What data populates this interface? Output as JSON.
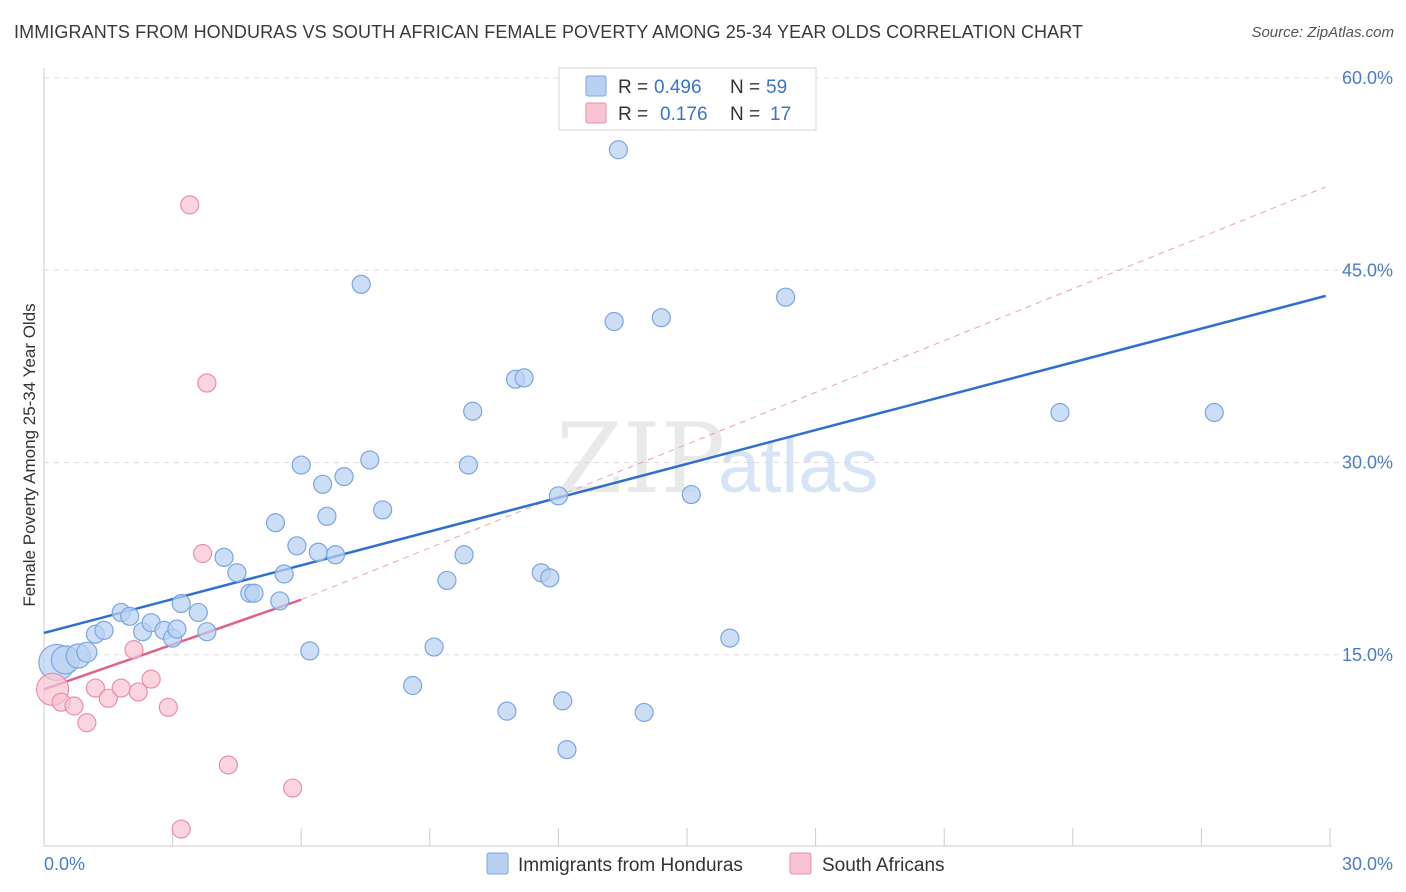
{
  "title": "IMMIGRANTS FROM HONDURAS VS SOUTH AFRICAN FEMALE POVERTY AMONG 25-34 YEAR OLDS CORRELATION CHART",
  "source": "Source: ZipAtlas.com",
  "watermark": {
    "zip": "ZIP",
    "atlas": "atlas"
  },
  "colors": {
    "blue_fill": "#b8d1f3",
    "blue_stroke": "#7aa6e0",
    "blue_line": "#2f6fcf",
    "pink_fill": "#f8c3d3",
    "pink_stroke": "#ea8fab",
    "pink_line": "#e0628c",
    "tick": "#4a7cc7",
    "grid": "#dddddd"
  },
  "chart_data": {
    "type": "scatter",
    "xlabel": "",
    "ylabel": "Female Poverty Among 25-34 Year Olds",
    "xlim": [
      0,
      30
    ],
    "ylim": [
      0,
      60
    ],
    "x_tick_labels": [
      {
        "v": 0,
        "label": "0.0%"
      },
      {
        "v": 30,
        "label": "30.0%"
      }
    ],
    "y_tick_labels": [
      {
        "v": 15,
        "label": "15.0%"
      },
      {
        "v": 30,
        "label": "30.0%"
      },
      {
        "v": 45,
        "label": "45.0%"
      },
      {
        "v": 60,
        "label": "60.0%"
      }
    ],
    "grid_y": [
      15,
      30,
      45,
      60
    ],
    "x_minor_ticks": [
      3,
      6,
      9,
      12,
      15,
      18,
      21,
      24,
      27,
      30
    ],
    "legend": {
      "rows": [
        {
          "r_label": "R =",
          "r": "0.496",
          "n_label": "N =",
          "n": "59",
          "color": "blue"
        },
        {
          "r_label": "R =",
          "r": "0.176",
          "n_label": "N =",
          "n": "17",
          "color": "pink"
        }
      ]
    },
    "series": [
      {
        "name": "Immigrants from Honduras",
        "color": "blue",
        "trend": {
          "x0": 0,
          "y0": 16.7,
          "x1": 29.9,
          "y1": 43.0
        },
        "points": [
          [
            0.3,
            14.4,
            18
          ],
          [
            0.5,
            14.6,
            14
          ],
          [
            0.8,
            14.9,
            12
          ],
          [
            1.0,
            15.2,
            10
          ],
          [
            1.2,
            16.6,
            9
          ],
          [
            1.4,
            16.9,
            9
          ],
          [
            1.8,
            18.3,
            9
          ],
          [
            2.0,
            18.0,
            9
          ],
          [
            2.3,
            16.8,
            9
          ],
          [
            2.5,
            17.5,
            9
          ],
          [
            2.8,
            16.9,
            9
          ],
          [
            3.0,
            16.3,
            9
          ],
          [
            3.1,
            17.0,
            9
          ],
          [
            3.2,
            19.0,
            9
          ],
          [
            3.6,
            18.3,
            9
          ],
          [
            3.8,
            16.8,
            9
          ],
          [
            4.2,
            22.6,
            9
          ],
          [
            4.5,
            21.4,
            9
          ],
          [
            4.8,
            19.8,
            9
          ],
          [
            4.9,
            19.8,
            9
          ],
          [
            5.4,
            25.3,
            9
          ],
          [
            5.5,
            19.2,
            9
          ],
          [
            5.6,
            21.3,
            9
          ],
          [
            5.9,
            23.5,
            9
          ],
          [
            6.0,
            29.8,
            9
          ],
          [
            6.2,
            15.3,
            9
          ],
          [
            6.4,
            23.0,
            9
          ],
          [
            6.5,
            28.3,
            9
          ],
          [
            6.6,
            25.8,
            9
          ],
          [
            6.8,
            22.8,
            9
          ],
          [
            7.0,
            28.9,
            9
          ],
          [
            7.4,
            43.9,
            9
          ],
          [
            7.6,
            30.2,
            9
          ],
          [
            7.9,
            26.3,
            9
          ],
          [
            8.6,
            12.6,
            9
          ],
          [
            9.1,
            15.6,
            9
          ],
          [
            9.4,
            20.8,
            9
          ],
          [
            9.8,
            22.8,
            9
          ],
          [
            9.9,
            29.8,
            9
          ],
          [
            10.0,
            34.0,
            9
          ],
          [
            10.8,
            10.6,
            9
          ],
          [
            11.0,
            36.5,
            9
          ],
          [
            11.2,
            36.6,
            9
          ],
          [
            11.6,
            21.4,
            9
          ],
          [
            11.8,
            21.0,
            9
          ],
          [
            12.0,
            27.4,
            9
          ],
          [
            12.1,
            11.4,
            9
          ],
          [
            12.2,
            7.6,
            9
          ],
          [
            13.3,
            41.0,
            9
          ],
          [
            13.4,
            54.4,
            9
          ],
          [
            14.0,
            10.5,
            9
          ],
          [
            14.4,
            41.3,
            9
          ],
          [
            15.1,
            27.5,
            9
          ],
          [
            16.0,
            16.3,
            9
          ],
          [
            17.3,
            42.9,
            9
          ],
          [
            23.7,
            33.9,
            9
          ],
          [
            27.3,
            33.9,
            9
          ],
          [
            13.0,
            41.0,
            0
          ],
          [
            11.3,
            36.4,
            0
          ]
        ]
      },
      {
        "name": "South Africans",
        "color": "pink",
        "trend": {
          "x0": 0,
          "y0": 12.3,
          "x1": 6.0,
          "y1": 19.3
        },
        "trend_ext": {
          "x0": 6.0,
          "y0": 19.3,
          "x1": 29.9,
          "y1": 51.5
        },
        "points": [
          [
            0.2,
            12.3,
            16
          ],
          [
            0.4,
            11.3,
            9
          ],
          [
            0.7,
            11.0,
            9
          ],
          [
            1.0,
            9.7,
            9
          ],
          [
            1.2,
            12.4,
            9
          ],
          [
            1.5,
            11.6,
            9
          ],
          [
            1.8,
            12.4,
            9
          ],
          [
            2.1,
            15.4,
            9
          ],
          [
            2.2,
            12.1,
            9
          ],
          [
            2.5,
            13.1,
            9
          ],
          [
            2.9,
            10.9,
            9
          ],
          [
            3.2,
            1.4,
            9
          ],
          [
            3.4,
            50.1,
            9
          ],
          [
            3.7,
            22.9,
            9
          ],
          [
            3.8,
            36.2,
            9
          ],
          [
            4.3,
            6.4,
            9
          ],
          [
            5.8,
            4.6,
            9
          ]
        ]
      }
    ]
  }
}
